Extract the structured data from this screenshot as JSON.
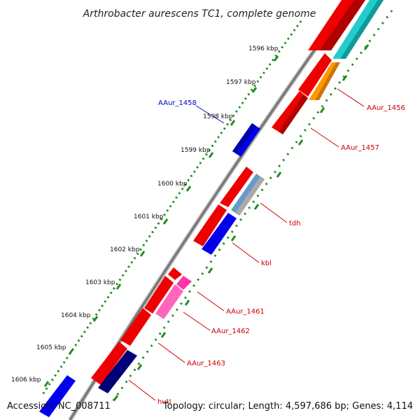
{
  "title": "Arthrobacter aurescens TC1, complete genome",
  "footer": {
    "accession": "Accession: NC_008711",
    "summary": "Topology: circular; Length: 4,597,686 bp; Genes: 4,114"
  },
  "colors": {
    "label_red": "#cc0000",
    "label_blue": "#0000cc",
    "tick_green": "#228b22",
    "backbone": "#888888"
  },
  "ticks": [
    {
      "kbp": 1596,
      "label": "1596 kbp"
    },
    {
      "kbp": 1597,
      "label": "1597 kbp"
    },
    {
      "kbp": 1598,
      "label": "1598 kbp"
    },
    {
      "kbp": 1599,
      "label": "1599 kbp"
    },
    {
      "kbp": 1600,
      "label": "1600 kbp"
    },
    {
      "kbp": 1601,
      "label": "1601 kbp"
    },
    {
      "kbp": 1602,
      "label": "1602 kbp"
    },
    {
      "kbp": 1603,
      "label": "1603 kbp"
    },
    {
      "kbp": 1604,
      "label": "1604 kbp"
    },
    {
      "kbp": 1605,
      "label": "1605 kbp"
    },
    {
      "kbp": 1606,
      "label": "1606 kbp"
    }
  ],
  "genes": [
    {
      "label": "AAur_1456",
      "strand": "-",
      "color": "red"
    },
    {
      "label": "AAur_1457",
      "strand": "-",
      "color": "red"
    },
    {
      "label": "AAur_1458",
      "strand": "+",
      "color": "blue"
    },
    {
      "label": "tdh",
      "strand": "-",
      "color": "red"
    },
    {
      "label": "kbl",
      "strand": "-",
      "color": "red"
    },
    {
      "label": "AAur_1461",
      "strand": "-",
      "color": "red"
    },
    {
      "label": "AAur_1462",
      "strand": "-",
      "color": "red"
    },
    {
      "label": "AAur_1463",
      "strand": "-",
      "color": "red"
    },
    {
      "label": "hutI",
      "strand": "-",
      "color": "red"
    }
  ]
}
